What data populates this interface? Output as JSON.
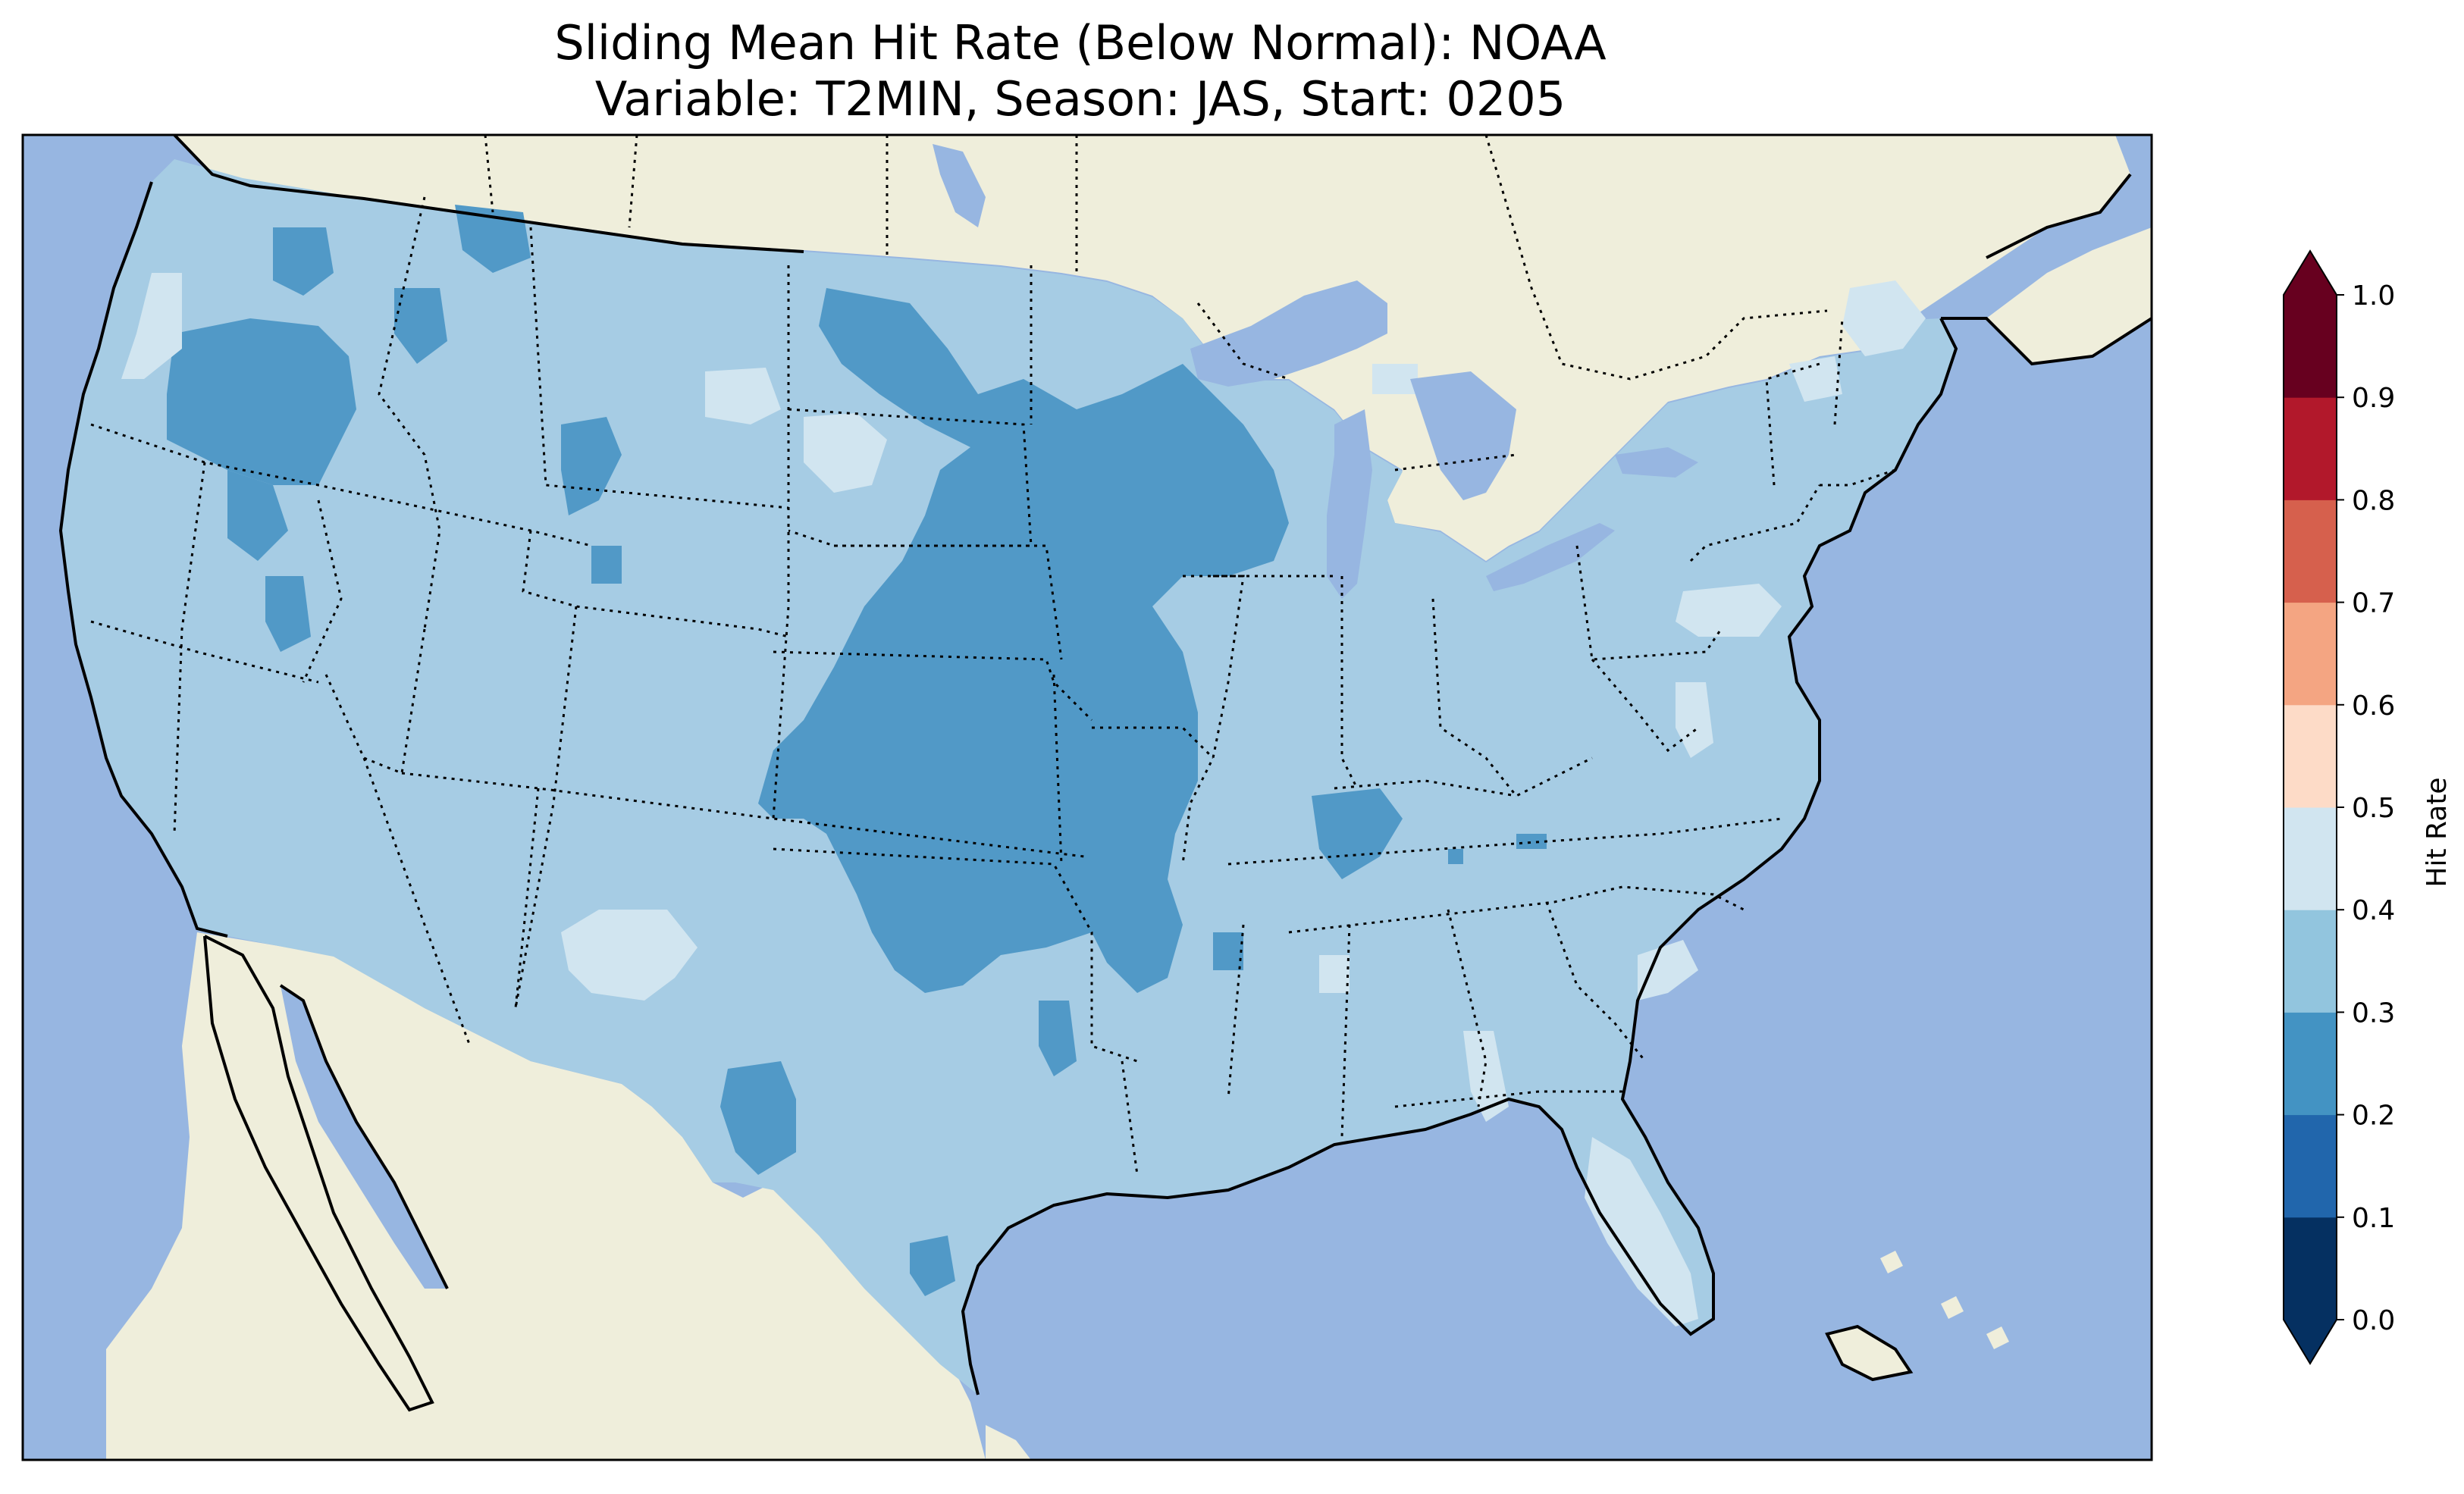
{
  "title": {
    "line1": "Sliding Mean Hit Rate (Below Normal): NOAA",
    "line2": "Variable: T2MIN, Season: JAS, Start: 0205"
  },
  "map": {
    "projection": "Lambert conformal (CONUS)",
    "ocean_color": "#97b6e1",
    "land_outside_color": "#efeedb",
    "lake_color": "#97b6e1",
    "coastline_color": "#000000",
    "state_border_style": "dotted"
  },
  "colorbar": {
    "label": "Hit Rate",
    "orientation": "vertical",
    "extend": "both",
    "bounds": [
      0.0,
      0.1,
      0.2,
      0.3,
      0.4,
      0.5,
      0.6,
      0.7,
      0.8,
      0.9,
      1.0
    ],
    "tick_labels": [
      "0.0",
      "0.1",
      "0.2",
      "0.3",
      "0.4",
      "0.5",
      "0.6",
      "0.7",
      "0.8",
      "0.9",
      "1.0"
    ],
    "colors": [
      "#053061",
      "#2166ac",
      "#4393c3",
      "#92c5de",
      "#d1e5f0",
      "#fddbc7",
      "#f4a582",
      "#d6604d",
      "#b2182b",
      "#67001f"
    ],
    "extend_low_color": "#053061",
    "extend_high_color": "#67001f"
  },
  "chart_data": {
    "type": "heatmap",
    "title": "Sliding Mean Hit Rate (Below Normal): NOAA\nVariable: T2MIN, Season: JAS, Start: 0205",
    "colorbar_label": "Hit Rate",
    "value_range": [
      0.0,
      1.0
    ],
    "dominant_class": "0.3-0.4",
    "regions": [
      {
        "area": "Pacific Northwest (Oregon / Washington interior)",
        "range": "0.2-0.3"
      },
      {
        "area": "Central Plains (Nebraska, Kansas, western Missouri, Iowa, Oklahoma)",
        "range": "0.2-0.3"
      },
      {
        "area": "Minnesota / Wisconsin",
        "range": "0.2-0.3"
      },
      {
        "area": "West Texas / Big Bend",
        "range": "0.2-0.3"
      },
      {
        "area": "Western Kentucky / Tennessee",
        "range": "0.2-0.3"
      },
      {
        "area": "Florida peninsula",
        "range": "0.4-0.5"
      },
      {
        "area": "North-central New Mexico",
        "range": "0.4-0.5"
      },
      {
        "area": "Pennsylvania / Virginia patches",
        "range": "0.4-0.5"
      },
      {
        "area": "Northern Maine / coastal Washington",
        "range": "0.4-0.5"
      },
      {
        "area": "Remaining CONUS",
        "range": "0.3-0.4"
      }
    ]
  }
}
